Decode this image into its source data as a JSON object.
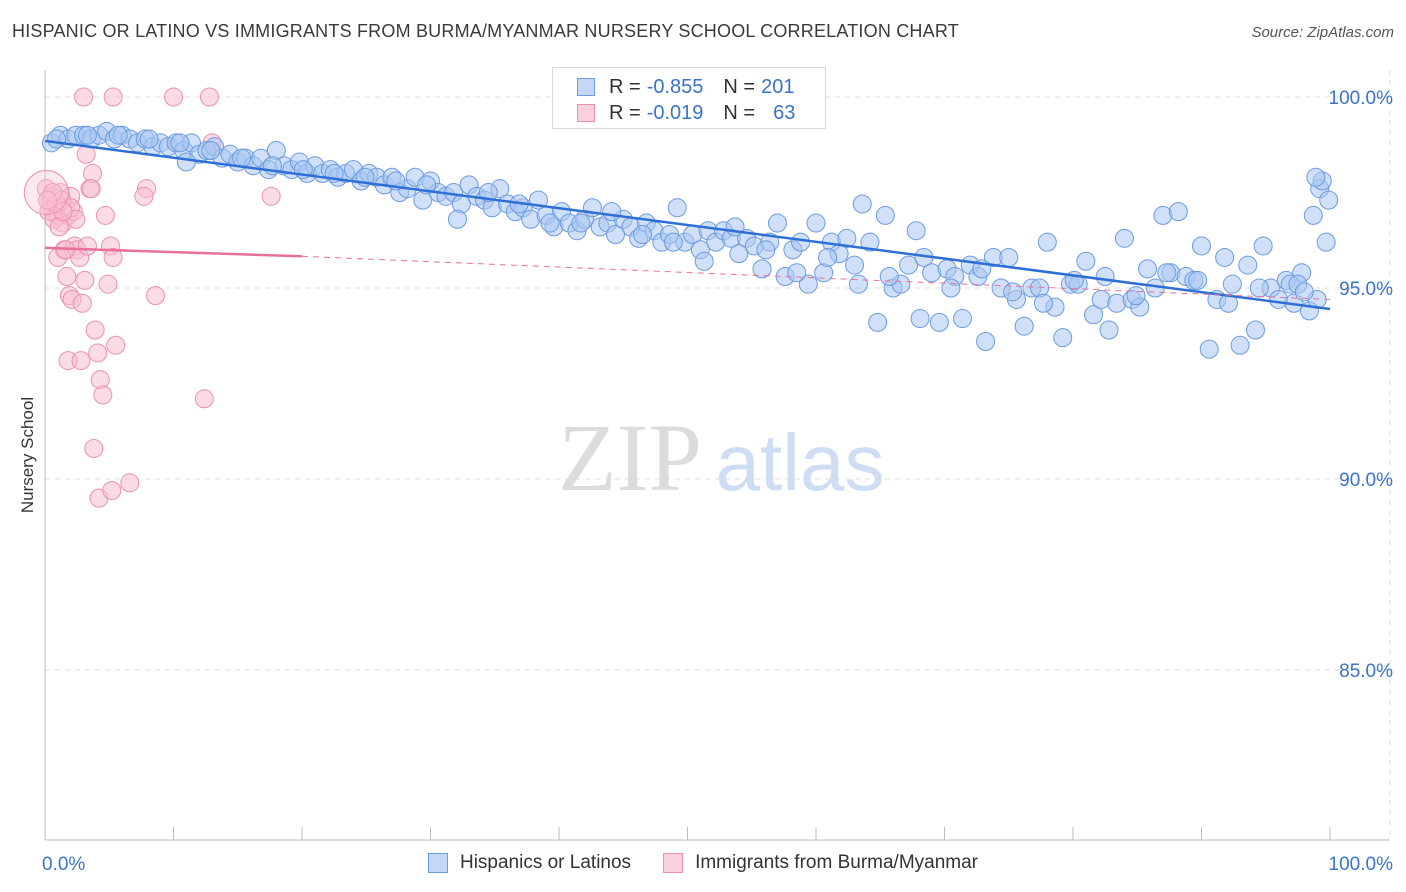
{
  "title": "HISPANIC OR LATINO VS IMMIGRANTS FROM BURMA/MYANMAR NURSERY SCHOOL CORRELATION CHART",
  "source": "Source: ZipAtlas.com",
  "watermark": {
    "zip": "ZIP",
    "atlas": "atlas"
  },
  "legend_top": {
    "rows": [
      {
        "r_label": "R =",
        "r_value": "-0.855",
        "n_label": "N =",
        "n_value": "201",
        "color": "#6fa0e8"
      },
      {
        "r_label": "R =",
        "r_value": "-0.019",
        "n_label": "N =",
        "n_value": "63",
        "color": "#f090b0"
      }
    ]
  },
  "legend_bottom": [
    {
      "label": "Hispanics or Latinos",
      "color": "#6fa0e8"
    },
    {
      "label": "Immigrants from Burma/Myanmar",
      "color": "#f090b0"
    }
  ],
  "colors": {
    "blue_fill": "#a9c6f2",
    "blue_stroke": "#6b9be0",
    "blue_line": "#2e6fd6",
    "pink_fill": "#f7bfd1",
    "pink_stroke": "#ec8fb0",
    "pink_line": "#e8709a",
    "tick_label": "#3a73c8",
    "grid": "#dddddd"
  },
  "chart_data": {
    "type": "scatter",
    "xlabel": "",
    "ylabel": "Nursery School",
    "xlim": [
      0,
      100
    ],
    "ylim": [
      80.0,
      100.5
    ],
    "x_tick_labels": [
      "0.0%",
      "100.0%"
    ],
    "y_ticks": [
      100,
      95,
      90,
      85
    ],
    "y_tick_labels": [
      "100.0%",
      "95.0%",
      "90.0%",
      "85.0%"
    ],
    "grid": true,
    "series": [
      {
        "name": "Hispanics or Latinos",
        "trend": {
          "x": [
            0,
            100
          ],
          "y": [
            98.85,
            94.45
          ]
        },
        "points": [
          [
            0.5,
            98.8
          ],
          [
            1.2,
            99.0
          ],
          [
            1.8,
            98.9
          ],
          [
            2.4,
            99.0
          ],
          [
            3.0,
            99.0
          ],
          [
            3.6,
            98.9
          ],
          [
            4.2,
            99.0
          ],
          [
            4.8,
            99.1
          ],
          [
            5.4,
            98.9
          ],
          [
            6.0,
            99.0
          ],
          [
            6.6,
            98.9
          ],
          [
            7.2,
            98.8
          ],
          [
            7.8,
            98.9
          ],
          [
            8.4,
            98.7
          ],
          [
            9.0,
            98.8
          ],
          [
            9.6,
            98.7
          ],
          [
            10.2,
            98.8
          ],
          [
            10.8,
            98.6
          ],
          [
            11.4,
            98.8
          ],
          [
            12.0,
            98.5
          ],
          [
            12.6,
            98.6
          ],
          [
            13.2,
            98.7
          ],
          [
            13.8,
            98.4
          ],
          [
            14.4,
            98.5
          ],
          [
            15.0,
            98.3
          ],
          [
            15.6,
            98.4
          ],
          [
            16.2,
            98.2
          ],
          [
            16.8,
            98.4
          ],
          [
            17.4,
            98.1
          ],
          [
            18.0,
            98.6
          ],
          [
            18.6,
            98.2
          ],
          [
            19.2,
            98.1
          ],
          [
            19.8,
            98.3
          ],
          [
            20.4,
            98.0
          ],
          [
            21.0,
            98.2
          ],
          [
            21.6,
            98.0
          ],
          [
            22.2,
            98.1
          ],
          [
            22.8,
            97.9
          ],
          [
            23.4,
            98.0
          ],
          [
            24.0,
            98.1
          ],
          [
            24.6,
            97.8
          ],
          [
            25.2,
            98.0
          ],
          [
            25.8,
            97.9
          ],
          [
            26.4,
            97.7
          ],
          [
            27.0,
            97.9
          ],
          [
            27.6,
            97.5
          ],
          [
            28.2,
            97.6
          ],
          [
            28.8,
            97.9
          ],
          [
            29.4,
            97.3
          ],
          [
            30.0,
            97.8
          ],
          [
            30.6,
            97.5
          ],
          [
            31.2,
            97.4
          ],
          [
            31.8,
            97.5
          ],
          [
            32.4,
            97.2
          ],
          [
            33.0,
            97.7
          ],
          [
            33.6,
            97.4
          ],
          [
            34.2,
            97.3
          ],
          [
            34.8,
            97.1
          ],
          [
            35.4,
            97.6
          ],
          [
            36.0,
            97.2
          ],
          [
            36.6,
            97.0
          ],
          [
            37.2,
            97.1
          ],
          [
            37.8,
            96.8
          ],
          [
            38.4,
            97.3
          ],
          [
            39.0,
            96.9
          ],
          [
            39.6,
            96.6
          ],
          [
            40.2,
            97.0
          ],
          [
            40.8,
            96.7
          ],
          [
            41.4,
            96.5
          ],
          [
            42.0,
            96.8
          ],
          [
            42.6,
            97.1
          ],
          [
            43.2,
            96.6
          ],
          [
            43.8,
            96.7
          ],
          [
            44.4,
            96.4
          ],
          [
            45.0,
            96.8
          ],
          [
            45.6,
            96.6
          ],
          [
            46.2,
            96.3
          ],
          [
            46.8,
            96.7
          ],
          [
            47.4,
            96.5
          ],
          [
            48.0,
            96.2
          ],
          [
            48.6,
            96.4
          ],
          [
            49.2,
            97.1
          ],
          [
            49.8,
            96.2
          ],
          [
            50.4,
            96.4
          ],
          [
            51.0,
            96.0
          ],
          [
            51.6,
            96.5
          ],
          [
            52.2,
            96.2
          ],
          [
            52.8,
            96.5
          ],
          [
            53.4,
            96.3
          ],
          [
            54.0,
            95.9
          ],
          [
            54.6,
            96.3
          ],
          [
            55.2,
            96.1
          ],
          [
            55.8,
            95.5
          ],
          [
            56.4,
            96.2
          ],
          [
            57.0,
            96.7
          ],
          [
            57.6,
            95.3
          ],
          [
            58.2,
            96.0
          ],
          [
            58.8,
            96.2
          ],
          [
            59.4,
            95.1
          ],
          [
            60.0,
            96.7
          ],
          [
            60.6,
            95.4
          ],
          [
            61.2,
            96.2
          ],
          [
            61.8,
            95.9
          ],
          [
            62.4,
            96.3
          ],
          [
            63.0,
            95.6
          ],
          [
            63.6,
            97.2
          ],
          [
            64.2,
            96.2
          ],
          [
            64.8,
            94.1
          ],
          [
            65.4,
            96.9
          ],
          [
            66.0,
            95.0
          ],
          [
            66.6,
            95.1
          ],
          [
            67.2,
            95.6
          ],
          [
            67.8,
            96.5
          ],
          [
            68.4,
            95.8
          ],
          [
            69.0,
            95.4
          ],
          [
            69.6,
            94.1
          ],
          [
            70.2,
            95.5
          ],
          [
            70.8,
            95.3
          ],
          [
            71.4,
            94.2
          ],
          [
            72.0,
            95.6
          ],
          [
            72.6,
            95.3
          ],
          [
            73.2,
            93.6
          ],
          [
            73.8,
            95.8
          ],
          [
            74.4,
            95.0
          ],
          [
            75.0,
            95.8
          ],
          [
            75.6,
            94.7
          ],
          [
            76.2,
            94.0
          ],
          [
            76.8,
            95.0
          ],
          [
            77.4,
            95.0
          ],
          [
            78.0,
            96.2
          ],
          [
            78.6,
            94.5
          ],
          [
            79.2,
            93.7
          ],
          [
            79.8,
            95.1
          ],
          [
            80.4,
            95.1
          ],
          [
            81.0,
            95.7
          ],
          [
            81.6,
            94.3
          ],
          [
            82.2,
            94.7
          ],
          [
            82.8,
            93.9
          ],
          [
            83.4,
            94.6
          ],
          [
            84.0,
            96.3
          ],
          [
            84.6,
            94.7
          ],
          [
            85.2,
            94.5
          ],
          [
            85.8,
            95.5
          ],
          [
            86.4,
            95.0
          ],
          [
            87.0,
            96.9
          ],
          [
            87.6,
            95.4
          ],
          [
            88.2,
            97.0
          ],
          [
            88.8,
            95.3
          ],
          [
            89.4,
            95.2
          ],
          [
            90.0,
            96.1
          ],
          [
            90.6,
            93.4
          ],
          [
            91.2,
            94.7
          ],
          [
            91.8,
            95.8
          ],
          [
            92.4,
            95.1
          ],
          [
            93.0,
            93.5
          ],
          [
            93.6,
            95.6
          ],
          [
            94.2,
            93.9
          ],
          [
            94.8,
            96.1
          ],
          [
            95.4,
            95.0
          ],
          [
            96.0,
            94.7
          ],
          [
            96.6,
            95.2
          ],
          [
            97.2,
            94.6
          ],
          [
            97.8,
            95.4
          ],
          [
            98.4,
            94.4
          ],
          [
            99.0,
            94.7
          ],
          [
            0.9,
            98.9
          ],
          [
            3.3,
            99.0
          ],
          [
            5.7,
            99.0
          ],
          [
            8.1,
            98.9
          ],
          [
            10.5,
            98.8
          ],
          [
            12.9,
            98.6
          ],
          [
            15.3,
            98.4
          ],
          [
            17.7,
            98.2
          ],
          [
            20.1,
            98.1
          ],
          [
            22.5,
            98.0
          ],
          [
            24.9,
            97.9
          ],
          [
            27.3,
            97.8
          ],
          [
            29.7,
            97.7
          ],
          [
            32.1,
            96.8
          ],
          [
            34.5,
            97.5
          ],
          [
            36.9,
            97.2
          ],
          [
            39.3,
            96.7
          ],
          [
            41.7,
            96.7
          ],
          [
            44.1,
            97.0
          ],
          [
            46.5,
            96.4
          ],
          [
            48.9,
            96.2
          ],
          [
            51.3,
            95.7
          ],
          [
            53.7,
            96.6
          ],
          [
            56.1,
            96.0
          ],
          [
            58.5,
            95.4
          ],
          [
            60.9,
            95.8
          ],
          [
            63.3,
            95.1
          ],
          [
            65.7,
            95.3
          ],
          [
            68.1,
            94.2
          ],
          [
            70.5,
            95.0
          ],
          [
            72.9,
            95.5
          ],
          [
            75.3,
            94.9
          ],
          [
            77.7,
            94.6
          ],
          [
            80.1,
            95.2
          ],
          [
            82.5,
            95.3
          ],
          [
            84.9,
            94.8
          ],
          [
            87.3,
            95.4
          ],
          [
            89.7,
            95.2
          ],
          [
            92.1,
            94.6
          ],
          [
            94.5,
            95.0
          ],
          [
            96.9,
            95.1
          ],
          [
            97.5,
            95.1
          ],
          [
            98.0,
            94.9
          ],
          [
            98.7,
            96.9
          ],
          [
            99.2,
            97.6
          ],
          [
            99.7,
            96.2
          ],
          [
            99.9,
            97.3
          ],
          [
            99.4,
            97.8
          ],
          [
            98.9,
            97.9
          ],
          [
            11.0,
            98.3
          ]
        ]
      },
      {
        "name": "Immigrants from Burma/Myanmar",
        "trend": {
          "x": [
            0,
            20
          ],
          "y": [
            96.05,
            95.83
          ]
        },
        "trend_dashed": {
          "x": [
            20,
            100
          ],
          "y": [
            95.83,
            94.7
          ]
        },
        "points": [
          [
            3.0,
            100.0
          ],
          [
            5.3,
            100.0
          ],
          [
            10.0,
            100.0
          ],
          [
            12.8,
            100.0
          ],
          [
            0.1,
            97.6
          ],
          [
            0.4,
            97.3
          ],
          [
            0.6,
            97.0
          ],
          [
            0.8,
            97.2
          ],
          [
            1.0,
            96.9
          ],
          [
            1.2,
            97.5
          ],
          [
            1.4,
            96.7
          ],
          [
            1.6,
            97.1
          ],
          [
            1.8,
            96.9
          ],
          [
            2.0,
            97.4
          ],
          [
            2.2,
            97.0
          ],
          [
            0.3,
            97.0
          ],
          [
            0.5,
            97.4
          ],
          [
            0.7,
            96.8
          ],
          [
            0.9,
            97.2
          ],
          [
            1.1,
            96.6
          ],
          [
            1.3,
            97.3
          ],
          [
            1.5,
            96.0
          ],
          [
            1.7,
            95.3
          ],
          [
            1.9,
            94.8
          ],
          [
            2.1,
            94.7
          ],
          [
            2.3,
            96.1
          ],
          [
            2.5,
            96.0
          ],
          [
            2.7,
            95.8
          ],
          [
            2.9,
            94.6
          ],
          [
            3.1,
            95.2
          ],
          [
            3.3,
            96.1
          ],
          [
            3.5,
            97.6
          ],
          [
            3.7,
            98.0
          ],
          [
            3.9,
            93.9
          ],
          [
            4.1,
            93.3
          ],
          [
            4.3,
            92.6
          ],
          [
            4.5,
            92.2
          ],
          [
            4.7,
            96.9
          ],
          [
            4.9,
            95.1
          ],
          [
            5.1,
            96.1
          ],
          [
            5.3,
            95.8
          ],
          [
            5.5,
            93.5
          ],
          [
            1.8,
            93.1
          ],
          [
            2.8,
            93.1
          ],
          [
            3.6,
            97.6
          ],
          [
            3.2,
            98.5
          ],
          [
            7.9,
            97.6
          ],
          [
            7.7,
            97.4
          ],
          [
            8.6,
            94.8
          ],
          [
            13.0,
            98.8
          ],
          [
            17.6,
            97.4
          ],
          [
            12.4,
            92.1
          ],
          [
            3.8,
            90.8
          ],
          [
            4.2,
            89.5
          ],
          [
            5.2,
            89.7
          ],
          [
            6.6,
            89.9
          ],
          [
            2.0,
            97.1
          ],
          [
            1.0,
            95.8
          ],
          [
            0.6,
            97.5
          ],
          [
            2.4,
            96.8
          ],
          [
            1.6,
            96.0
          ],
          [
            0.2,
            97.3
          ],
          [
            1.4,
            97.0
          ]
        ]
      }
    ]
  }
}
